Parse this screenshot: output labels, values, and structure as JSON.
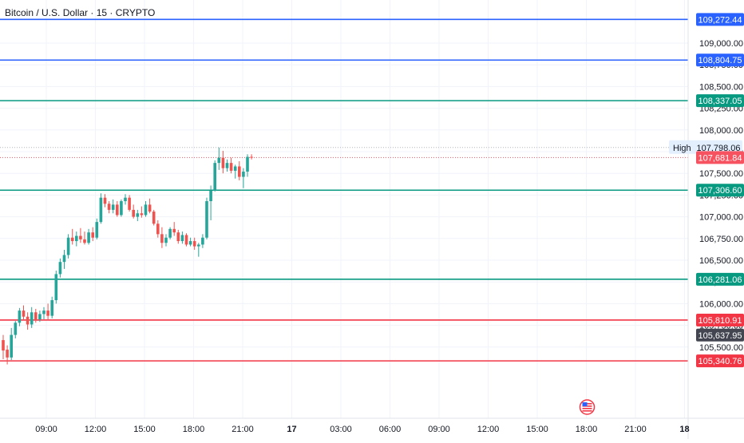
{
  "chart_title": "Bitcoin / U.S. Dollar · 15 · CRYPTO",
  "colors": {
    "up": "#26a69a",
    "down": "#ef5350",
    "blue_line": "#2962ff",
    "green_line": "#089981",
    "red_line": "#f23645",
    "current_price": "#f7525f",
    "high_tag": "#e3effd",
    "dark_tag": "#434651",
    "axis_text": "#131722",
    "grid": "#f0f3fa"
  },
  "chart_data": {
    "type": "candlestick",
    "title": "Bitcoin / U.S. Dollar · 15 · CRYPTO",
    "y_ticks": [
      {
        "value": 109000,
        "label": "109,000.00"
      },
      {
        "value": 108750,
        "label": "108,750.00"
      },
      {
        "value": 108500,
        "label": "108,500.00"
      },
      {
        "value": 108250,
        "label": "108,250.00"
      },
      {
        "value": 108000,
        "label": "108,000.00"
      },
      {
        "value": 107750,
        "label": "107,750.00"
      },
      {
        "value": 107500,
        "label": "107,500.00"
      },
      {
        "value": 107250,
        "label": "107,250.00"
      },
      {
        "value": 107000,
        "label": "107,000.00"
      },
      {
        "value": 106750,
        "label": "106,750.00"
      },
      {
        "value": 106500,
        "label": "106,500.00"
      },
      {
        "value": 106250,
        "label": "106,250.00"
      },
      {
        "value": 106000,
        "label": "106,000.00"
      },
      {
        "value": 105750,
        "label": "105,750.00"
      },
      {
        "value": 105500,
        "label": "105,500.00"
      }
    ],
    "x_ticks": [
      {
        "hours": 9,
        "label": "09:00",
        "bold": false
      },
      {
        "hours": 12,
        "label": "12:00",
        "bold": false
      },
      {
        "hours": 15,
        "label": "15:00",
        "bold": false
      },
      {
        "hours": 18,
        "label": "18:00",
        "bold": false
      },
      {
        "hours": 21,
        "label": "21:00",
        "bold": false
      },
      {
        "hours": 24,
        "label": "17",
        "bold": true
      },
      {
        "hours": 27,
        "label": "03:00",
        "bold": false
      },
      {
        "hours": 30,
        "label": "06:00",
        "bold": false
      },
      {
        "hours": 33,
        "label": "09:00",
        "bold": false
      },
      {
        "hours": 36,
        "label": "12:00",
        "bold": false
      },
      {
        "hours": 39,
        "label": "15:00",
        "bold": false
      },
      {
        "hours": 42,
        "label": "18:00",
        "bold": false
      },
      {
        "hours": 45,
        "label": "21:00",
        "bold": false
      },
      {
        "hours": 48,
        "label": "18",
        "bold": true
      }
    ],
    "horizontal_lines": [
      {
        "price": 109272.44,
        "label": "109,272.44",
        "color": "#2962ff"
      },
      {
        "price": 108804.75,
        "label": "108,804.75",
        "color": "#2962ff"
      },
      {
        "price": 108337.05,
        "label": "108,337.05",
        "color": "#089981"
      },
      {
        "price": 107306.6,
        "label": "107,306.60",
        "color": "#089981"
      },
      {
        "price": 106281.06,
        "label": "106,281.06",
        "color": "#089981"
      },
      {
        "price": 105810.91,
        "label": "105,810.91",
        "color": "#f23645"
      },
      {
        "price": 105340.76,
        "label": "105,340.76",
        "color": "#f23645"
      }
    ],
    "high_marker": {
      "name": "High",
      "price": 107798.06,
      "label": "107,798.06"
    },
    "current_price": {
      "price": 107681.84,
      "label": "107,681.84"
    },
    "extra_tag": {
      "price": 105637.95,
      "label": "105,637.95"
    },
    "candles": [
      {
        "o": 105580,
        "h": 105640,
        "l": 105360,
        "c": 105460
      },
      {
        "o": 105470,
        "h": 105520,
        "l": 105300,
        "c": 105380
      },
      {
        "o": 105380,
        "h": 105720,
        "l": 105350,
        "c": 105640
      },
      {
        "o": 105640,
        "h": 105800,
        "l": 105600,
        "c": 105780
      },
      {
        "o": 105780,
        "h": 105950,
        "l": 105740,
        "c": 105920
      },
      {
        "o": 105920,
        "h": 105980,
        "l": 105820,
        "c": 105850
      },
      {
        "o": 105850,
        "h": 105900,
        "l": 105700,
        "c": 105760
      },
      {
        "o": 105760,
        "h": 105960,
        "l": 105720,
        "c": 105900
      },
      {
        "o": 105900,
        "h": 105940,
        "l": 105780,
        "c": 105820
      },
      {
        "o": 105820,
        "h": 105920,
        "l": 105790,
        "c": 105880
      },
      {
        "o": 105880,
        "h": 105960,
        "l": 105820,
        "c": 105920
      },
      {
        "o": 105920,
        "h": 106000,
        "l": 105820,
        "c": 105860
      },
      {
        "o": 105860,
        "h": 106080,
        "l": 105830,
        "c": 106040
      },
      {
        "o": 106040,
        "h": 106380,
        "l": 106000,
        "c": 106340
      },
      {
        "o": 106340,
        "h": 106520,
        "l": 106300,
        "c": 106480
      },
      {
        "o": 106480,
        "h": 106620,
        "l": 106400,
        "c": 106560
      },
      {
        "o": 106560,
        "h": 106800,
        "l": 106520,
        "c": 106760
      },
      {
        "o": 106760,
        "h": 106860,
        "l": 106680,
        "c": 106720
      },
      {
        "o": 106720,
        "h": 106830,
        "l": 106660,
        "c": 106780
      },
      {
        "o": 106780,
        "h": 106870,
        "l": 106700,
        "c": 106740
      },
      {
        "o": 106740,
        "h": 106830,
        "l": 106680,
        "c": 106700
      },
      {
        "o": 106700,
        "h": 106860,
        "l": 106680,
        "c": 106820
      },
      {
        "o": 106820,
        "h": 106880,
        "l": 106720,
        "c": 106760
      },
      {
        "o": 106760,
        "h": 106980,
        "l": 106740,
        "c": 106940
      },
      {
        "o": 106940,
        "h": 107270,
        "l": 106920,
        "c": 107220
      },
      {
        "o": 107220,
        "h": 107260,
        "l": 107110,
        "c": 107150
      },
      {
        "o": 107150,
        "h": 107180,
        "l": 107040,
        "c": 107080
      },
      {
        "o": 107080,
        "h": 107200,
        "l": 107040,
        "c": 107140
      },
      {
        "o": 107140,
        "h": 107180,
        "l": 107000,
        "c": 107020
      },
      {
        "o": 107020,
        "h": 107200,
        "l": 107000,
        "c": 107180
      },
      {
        "o": 107180,
        "h": 107260,
        "l": 107140,
        "c": 107220
      },
      {
        "o": 107220,
        "h": 107250,
        "l": 107060,
        "c": 107080
      },
      {
        "o": 107080,
        "h": 107140,
        "l": 106980,
        "c": 107000
      },
      {
        "o": 107000,
        "h": 107080,
        "l": 106950,
        "c": 107040
      },
      {
        "o": 107040,
        "h": 107120,
        "l": 106990,
        "c": 107020
      },
      {
        "o": 107020,
        "h": 107180,
        "l": 107000,
        "c": 107140
      },
      {
        "o": 107140,
        "h": 107210,
        "l": 107040,
        "c": 107060
      },
      {
        "o": 107060,
        "h": 107080,
        "l": 106900,
        "c": 106920
      },
      {
        "o": 106920,
        "h": 106960,
        "l": 106760,
        "c": 106800
      },
      {
        "o": 106800,
        "h": 106880,
        "l": 106640,
        "c": 106700
      },
      {
        "o": 106700,
        "h": 106800,
        "l": 106660,
        "c": 106760
      },
      {
        "o": 106760,
        "h": 106880,
        "l": 106740,
        "c": 106860
      },
      {
        "o": 106860,
        "h": 106940,
        "l": 106780,
        "c": 106820
      },
      {
        "o": 106820,
        "h": 106850,
        "l": 106690,
        "c": 106720
      },
      {
        "o": 106720,
        "h": 106830,
        "l": 106690,
        "c": 106790
      },
      {
        "o": 106790,
        "h": 106810,
        "l": 106660,
        "c": 106680
      },
      {
        "o": 106680,
        "h": 106760,
        "l": 106660,
        "c": 106720
      },
      {
        "o": 106720,
        "h": 106760,
        "l": 106620,
        "c": 106660
      },
      {
        "o": 106660,
        "h": 106700,
        "l": 106540,
        "c": 106680
      },
      {
        "o": 106680,
        "h": 106800,
        "l": 106640,
        "c": 106760
      },
      {
        "o": 106760,
        "h": 107220,
        "l": 106740,
        "c": 107180
      },
      {
        "o": 107180,
        "h": 107360,
        "l": 106960,
        "c": 107300
      },
      {
        "o": 107300,
        "h": 107650,
        "l": 107290,
        "c": 107620
      },
      {
        "o": 107620,
        "h": 107798,
        "l": 107540,
        "c": 107680
      },
      {
        "o": 107680,
        "h": 107760,
        "l": 107500,
        "c": 107560
      },
      {
        "o": 107560,
        "h": 107660,
        "l": 107520,
        "c": 107620
      },
      {
        "o": 107620,
        "h": 107680,
        "l": 107500,
        "c": 107530
      },
      {
        "o": 107530,
        "h": 107600,
        "l": 107440,
        "c": 107580
      },
      {
        "o": 107580,
        "h": 107640,
        "l": 107420,
        "c": 107460
      },
      {
        "o": 107460,
        "h": 107560,
        "l": 107330,
        "c": 107520
      },
      {
        "o": 107520,
        "h": 107720,
        "l": 107460,
        "c": 107690
      },
      {
        "o": 107690,
        "h": 107720,
        "l": 107660,
        "c": 107682
      }
    ]
  }
}
